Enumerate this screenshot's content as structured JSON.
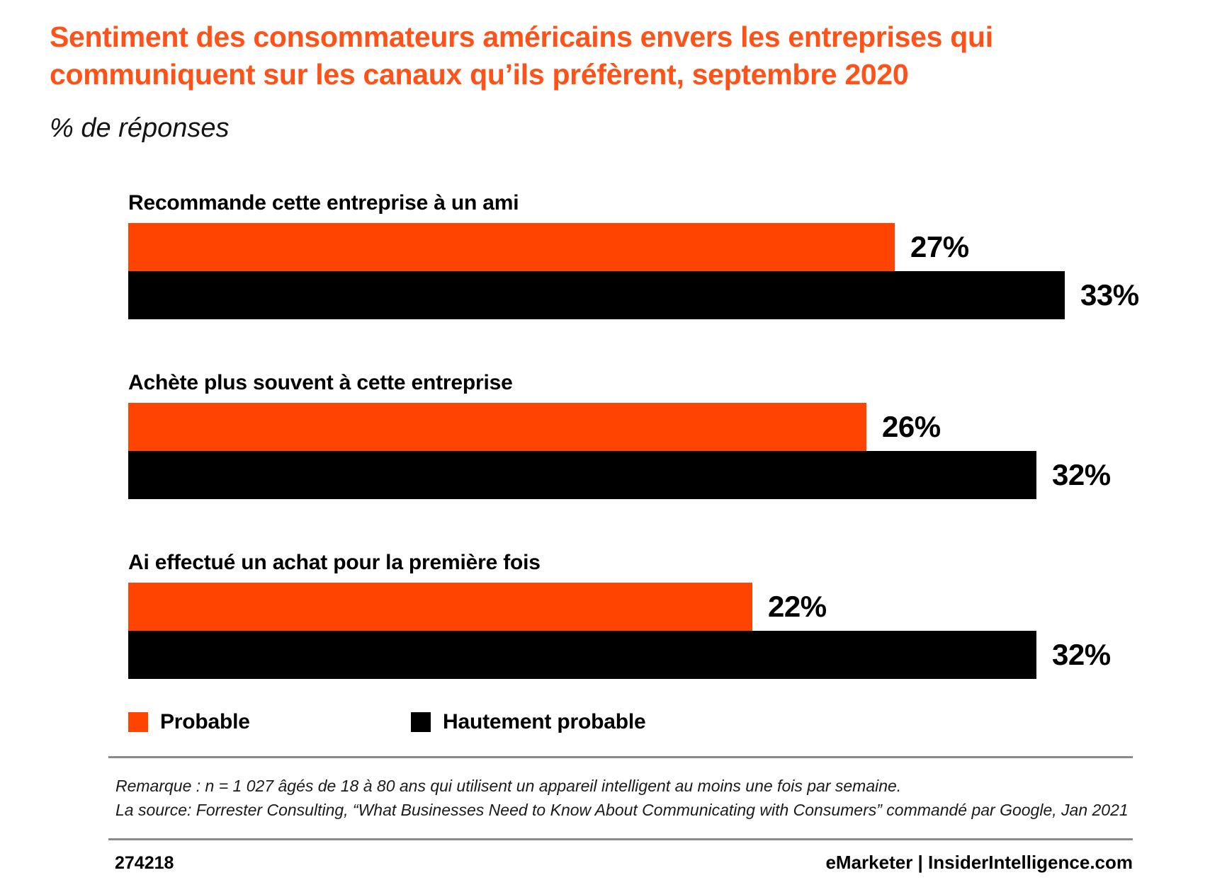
{
  "header": {
    "title_line1": "Sentiment des consommateurs américains envers les entreprises qui",
    "title_line2": "communiquent sur les canaux qu’ils préfèrent, septembre 2020",
    "subtitle": "% de réponses"
  },
  "chart_data": {
    "type": "bar",
    "orientation": "horizontal",
    "title": "Sentiment des consommateurs américains envers les entreprises qui communiquent sur les canaux qu’ils préfèrent, septembre 2020",
    "subtitle": "% de réponses",
    "unit": "%",
    "categories": [
      "Recommande cette entreprise à un ami",
      "Achète plus souvent à cette entreprise",
      "Ai effectué un achat pour la première fois"
    ],
    "series": [
      {
        "name": "Probable",
        "color": "#FF4300",
        "values": [
          27,
          26,
          22
        ],
        "labels": [
          "27%",
          "26%",
          "22%"
        ]
      },
      {
        "name": "Hautement probable",
        "color": "#000000",
        "values": [
          33,
          32,
          32
        ],
        "labels": [
          "33%",
          "32%",
          "32%"
        ]
      }
    ],
    "xmax": 33,
    "grid": false,
    "legend_position": "bottom"
  },
  "footnote": {
    "note": "Remarque : n = 1 027 âgés de 18 à 80 ans qui utilisent un appareil intelligent au moins une fois par semaine.",
    "source": "La source:  Forrester Consulting, “What Businesses Need to Know About Communicating with Consumers” commandé par Google, Jan 2021"
  },
  "footer": {
    "chart_id": "274218",
    "brand": "eMarketer | InsiderIntelligence.com"
  },
  "colors": {
    "bar_orange": "#FF4300",
    "title_orange": "#FF5218",
    "bar_black": "#000000",
    "divider_gray": "#8A8A8A"
  }
}
